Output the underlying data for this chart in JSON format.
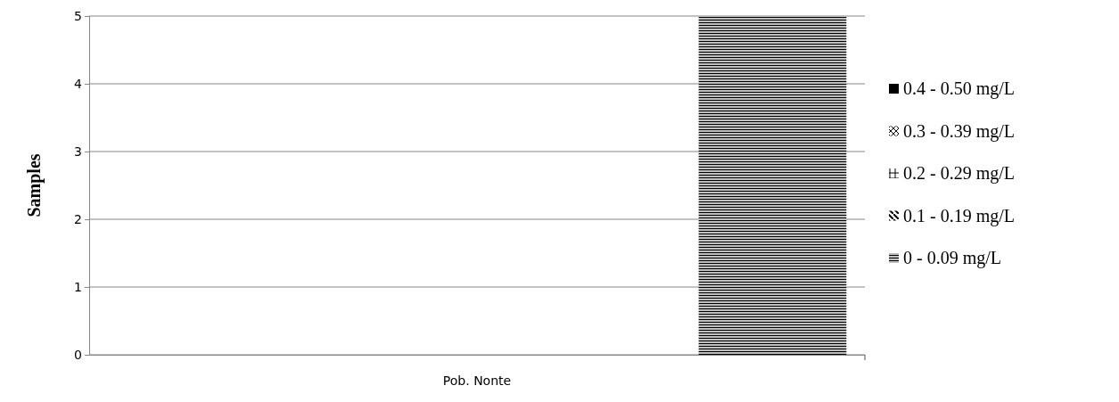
{
  "chart_data": {
    "type": "bar",
    "ylabel": "Samples",
    "categories": [
      "Pob. Nonte"
    ],
    "series": [
      {
        "name": "0.4 - 0.50 mg/L",
        "color": "#000000",
        "values": [
          0
        ]
      },
      {
        "name": "0.3 - 0.39 mg/L",
        "color": "#000000",
        "values": [
          0
        ]
      },
      {
        "name": "0.2 - 0.29 mg/L",
        "color": "#000000",
        "values": [
          0
        ]
      },
      {
        "name": "0.1 - 0.19 mg/L",
        "color": "#000000",
        "values": [
          0
        ]
      },
      {
        "name": "0 - 0.09 mg/L",
        "color": "#000000",
        "values": [
          5
        ]
      }
    ],
    "ylim": [
      0,
      5
    ],
    "yticks": [
      0,
      1,
      2,
      3,
      4,
      5
    ],
    "grid": "y",
    "legend": "right"
  }
}
